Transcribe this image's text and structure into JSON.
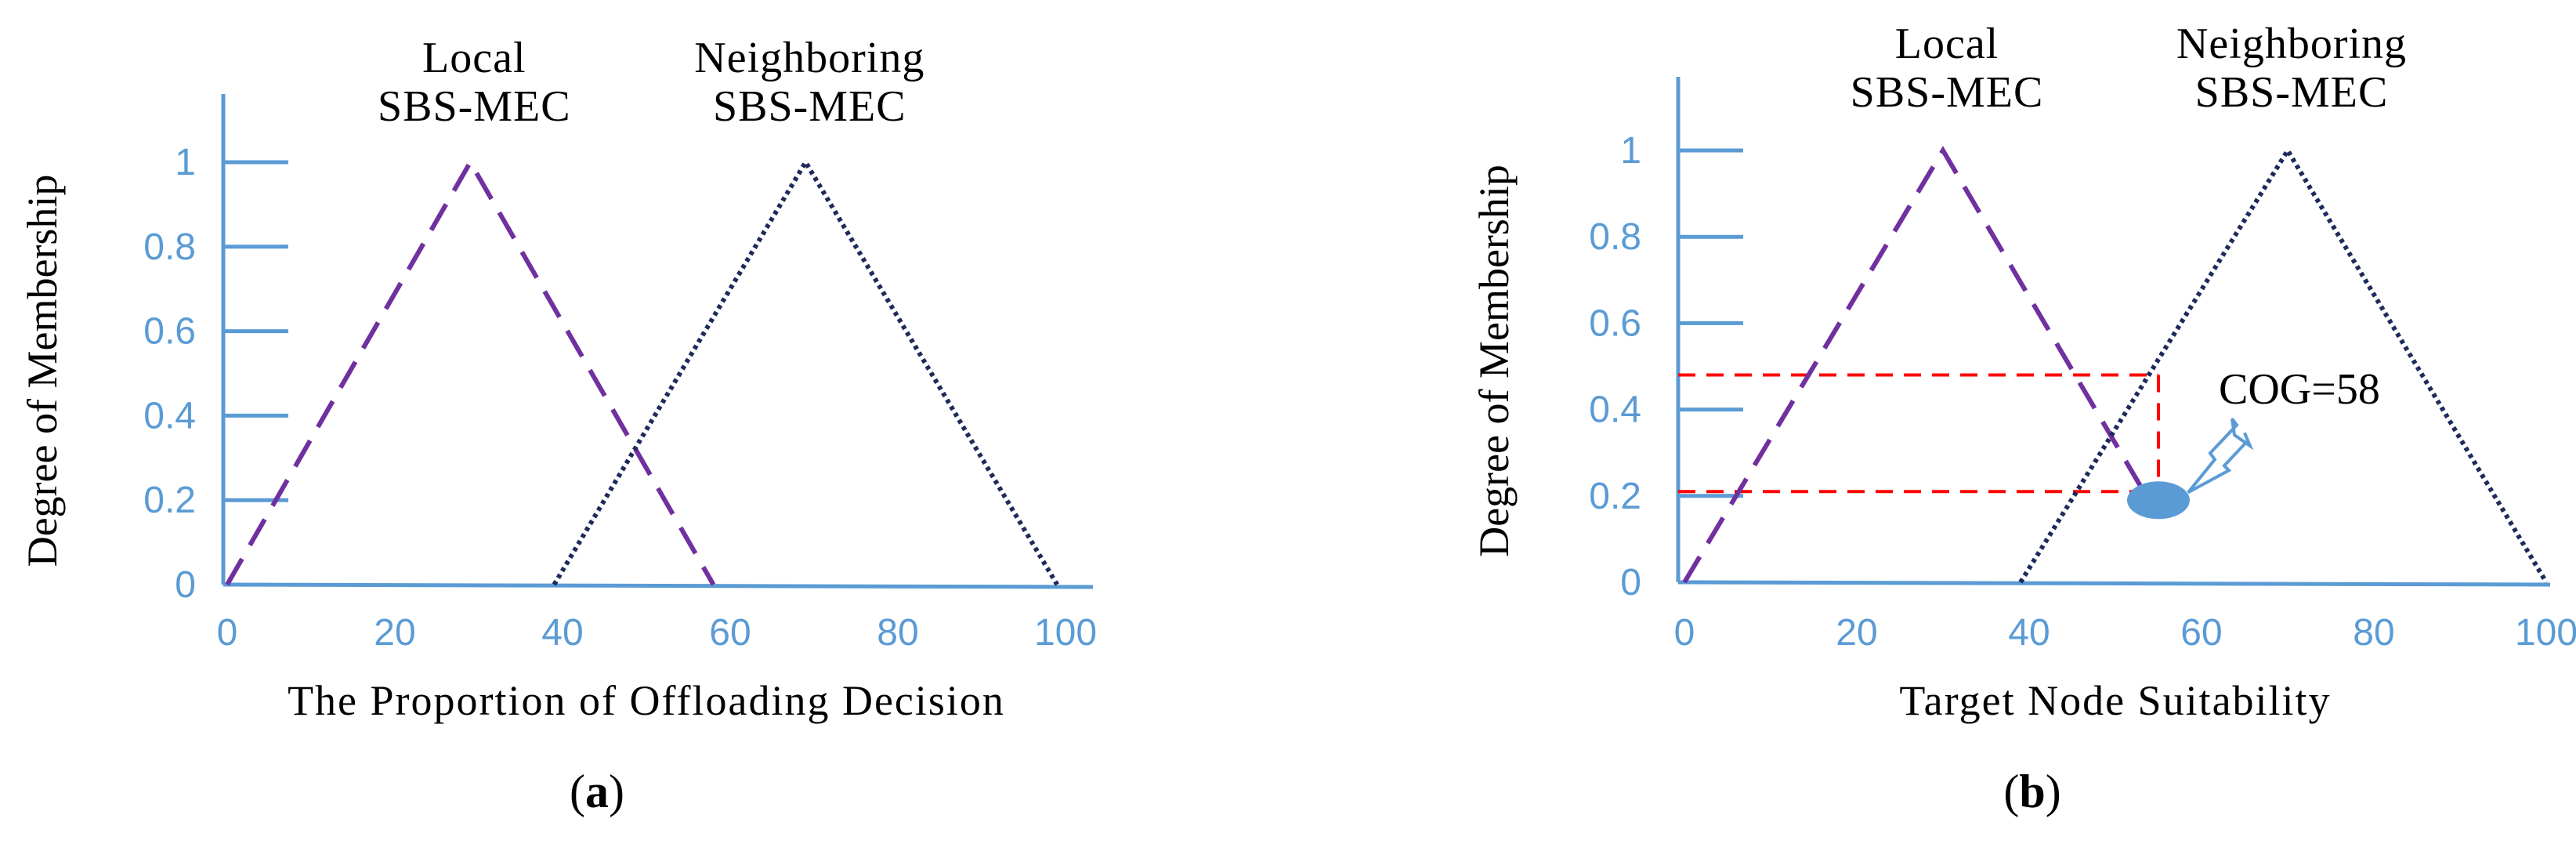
{
  "chart_data": [
    {
      "type": "line",
      "panel_label": "a",
      "xlabel": "The Proportion of Offloading Decision",
      "ylabel": "Degree of Membership",
      "x_ticks": [
        0,
        20,
        40,
        60,
        80,
        100
      ],
      "y_ticks": [
        0,
        0.2,
        0.4,
        0.6,
        0.8,
        1
      ],
      "y_tick_labels": [
        "0",
        "0.2",
        "0.4",
        "0.6",
        "0.8",
        "1"
      ],
      "xlim": [
        0,
        100
      ],
      "ylim": [
        0,
        1
      ],
      "grid": false,
      "series": [
        {
          "name": "Local SBS-MEC",
          "name_lines": [
            "Local",
            "SBS-MEC"
          ],
          "style": "dashed",
          "color": "#7030a0",
          "points": [
            [
              0,
              0
            ],
            [
              29,
              1
            ],
            [
              58,
              0
            ]
          ]
        },
        {
          "name": "Neighboring SBS-MEC",
          "name_lines": [
            "Neighboring",
            "SBS-MEC"
          ],
          "style": "dotted",
          "color": "#1f2a5c",
          "points": [
            [
              39,
              0
            ],
            [
              69,
              1
            ],
            [
              99,
              0
            ]
          ]
        }
      ]
    },
    {
      "type": "line",
      "panel_label": "b",
      "xlabel": "Target Node Suitability",
      "ylabel": "Degree of Membership",
      "x_ticks": [
        0,
        20,
        40,
        60,
        80,
        100
      ],
      "y_ticks": [
        0,
        0.2,
        0.4,
        0.6,
        0.8,
        1
      ],
      "y_tick_labels": [
        "0",
        "0.2",
        "0.4",
        "0.6",
        "0.8",
        "1"
      ],
      "xlim": [
        0,
        100
      ],
      "ylim": [
        0,
        1
      ],
      "grid": false,
      "series": [
        {
          "name": "Local SBS-MEC",
          "name_lines": [
            "Local",
            "SBS-MEC"
          ],
          "style": "dashed",
          "color": "#7030a0",
          "points": [
            [
              0,
              0
            ],
            [
              30,
              1
            ],
            [
              53,
              0.22
            ]
          ]
        },
        {
          "name": "Neighboring SBS-MEC",
          "name_lines": [
            "Neighboring",
            "SBS-MEC"
          ],
          "style": "dotted",
          "color": "#1f2a5c",
          "points": [
            [
              39,
              0
            ],
            [
              70,
              1
            ],
            [
              100,
              0
            ]
          ]
        }
      ],
      "guides": {
        "color": "#ff0000",
        "upper_y": 0.48,
        "lower_y": 0.21,
        "vertical_x": 55
      },
      "marker": {
        "x": 55,
        "y": 0.19,
        "color": "#5b9bd5"
      },
      "annotation": {
        "text": "COG=58",
        "x": 62,
        "y": 0.45
      }
    }
  ]
}
